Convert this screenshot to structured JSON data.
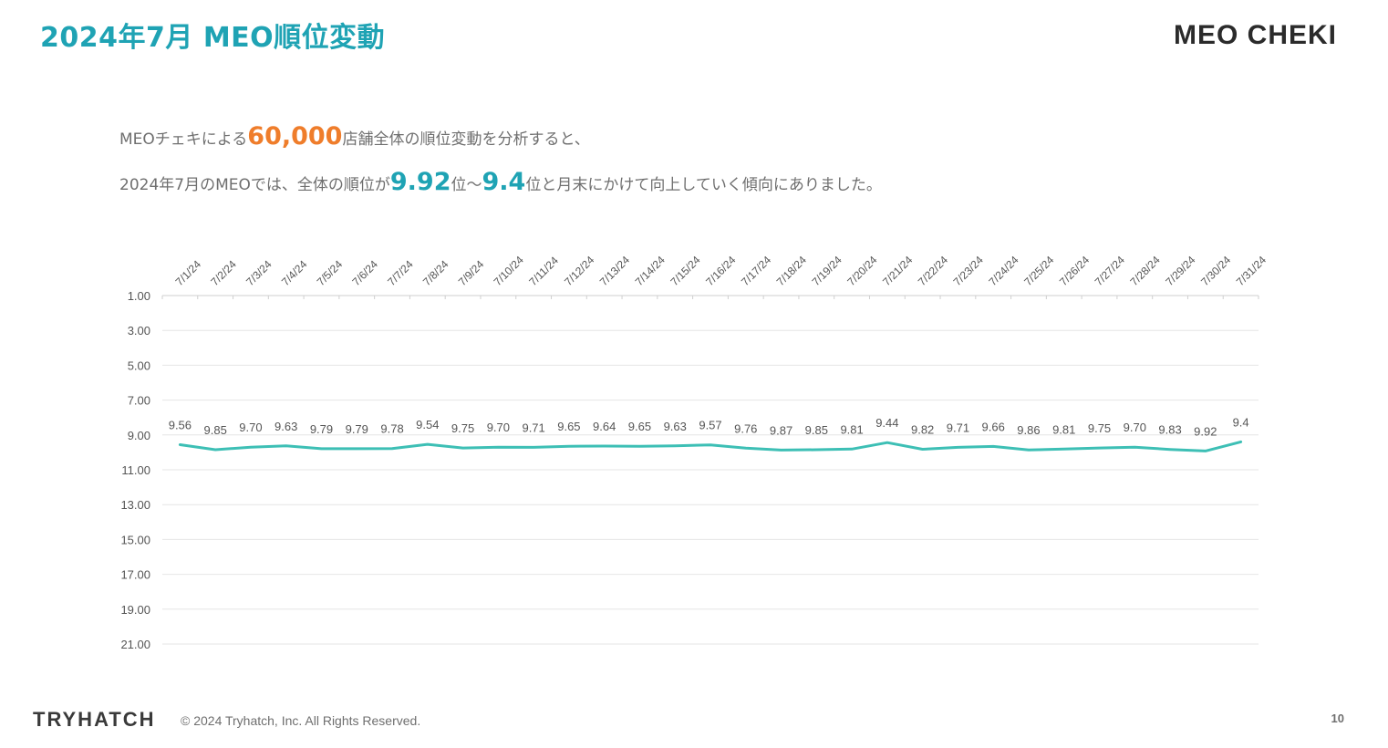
{
  "header": {
    "title": "2024年7月 MEO順位変動",
    "brand": "MEO CHEKI"
  },
  "summary": {
    "line1_prefix": "MEOチェキによる",
    "line1_highlight": "60,000",
    "line1_suffix": "店舗全体の順位変動を分析すると、",
    "line2_prefix": "2024年7月のMEOでは、全体の順位が",
    "line2_highlight1": "9.92",
    "line2_mid": "位〜",
    "line2_highlight2": "9.4",
    "line2_suffix": "位と月末にかけて向上していく傾向にありました。"
  },
  "colors": {
    "accent_teal": "#1fa3b4",
    "accent_orange": "#ef7d2b",
    "line": "#3dbfb5",
    "grid": "#e6e6e6",
    "text_gray": "#6f6f6f"
  },
  "chart_data": {
    "type": "line",
    "categories": [
      "7/1/24",
      "7/2/24",
      "7/3/24",
      "7/4/24",
      "7/5/24",
      "7/6/24",
      "7/7/24",
      "7/8/24",
      "7/9/24",
      "7/10/24",
      "7/11/24",
      "7/12/24",
      "7/13/24",
      "7/14/24",
      "7/15/24",
      "7/16/24",
      "7/17/24",
      "7/18/24",
      "7/19/24",
      "7/20/24",
      "7/21/24",
      "7/22/24",
      "7/23/24",
      "7/24/24",
      "7/25/24",
      "7/26/24",
      "7/27/24",
      "7/28/24",
      "7/29/24",
      "7/30/24",
      "7/31/24"
    ],
    "values": [
      9.56,
      9.85,
      9.7,
      9.63,
      9.79,
      9.79,
      9.78,
      9.54,
      9.75,
      9.7,
      9.71,
      9.65,
      9.64,
      9.65,
      9.63,
      9.57,
      9.76,
      9.87,
      9.85,
      9.81,
      9.44,
      9.82,
      9.71,
      9.66,
      9.86,
      9.81,
      9.75,
      9.7,
      9.83,
      9.92,
      9.4
    ],
    "data_labels": [
      "9.56",
      "9.85",
      "9.70",
      "9.63",
      "9.79",
      "9.79",
      "9.78",
      "9.54",
      "9.75",
      "9.70",
      "9.71",
      "9.65",
      "9.64",
      "9.65",
      "9.63",
      "9.57",
      "9.76",
      "9.87",
      "9.85",
      "9.81",
      "9.44",
      "9.82",
      "9.71",
      "9.66",
      "9.86",
      "9.81",
      "9.75",
      "9.70",
      "9.83",
      "9.92",
      "9.4"
    ],
    "y_ticks": [
      "1.00",
      "3.00",
      "5.00",
      "7.00",
      "9.00",
      "11.00",
      "13.00",
      "15.00",
      "17.00",
      "19.00",
      "21.00"
    ],
    "ylim": [
      1,
      21
    ],
    "y_reversed": true,
    "x_axis_position": "top",
    "grid": true,
    "title": "",
    "xlabel": "",
    "ylabel": ""
  },
  "footer": {
    "logo": "TRYHATCH",
    "copyright": "© 2024 Tryhatch, Inc. All Rights Reserved.",
    "page_number": "10"
  }
}
